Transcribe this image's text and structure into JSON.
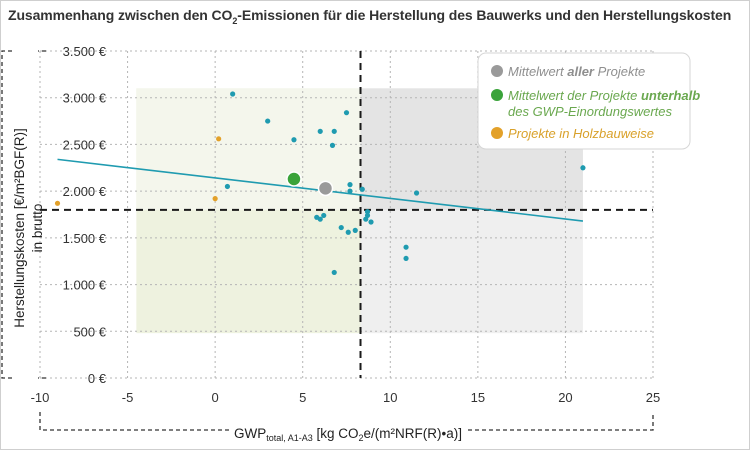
{
  "title_parts": {
    "pre": "Zusammenhang zwischen den CO",
    "sub": "2",
    "post": "-Emissionen für die Herstellung des Bauwerks und den Herstellungskosten"
  },
  "colors": {
    "teal": "#1f9bb0",
    "green": "#3aa33a",
    "gray": "#9a9a9a",
    "orange": "#e3a12a",
    "green_region": "#eef2df",
    "gray_region": "#e4e4e4"
  },
  "legend": [
    {
      "prefix": "Mittelwert ",
      "em": "aller",
      "suffix": " Projekte",
      "color": "#8f8f8f",
      "marker": "#9a9a9a"
    },
    {
      "prefix": "Mittelwert der Projekte ",
      "em": "unterhalb",
      "suffix": "",
      "line2": "des GWP-Einordungswertes",
      "color": "#6aa84f",
      "marker": "#3aa33a"
    },
    {
      "prefix": "Projekte in Holzbauweise",
      "em": "",
      "suffix": "",
      "color": "#d9a12a",
      "marker": "#e3a12a"
    }
  ],
  "chart_data": {
    "type": "scatter",
    "title": "Zusammenhang zwischen den CO2-Emissionen für die Herstellung des Bauwerks und den Herstellungskosten",
    "xlabel": "GWPtotal, A1-A3 [kg CO2e/(m²NRF(R)•a)]",
    "xlabel_parts": {
      "main": "GWP",
      "sub": "total, A1-A3",
      "rest": " [kg CO",
      "sub2": "2",
      "rest2": "e/(m²NRF(R)•a)]"
    },
    "ylabel": "Herstellungskosten [€/m²BGF(R)]",
    "ylabel2": "in brutto",
    "xlim": [
      -10,
      25
    ],
    "ylim": [
      0,
      3500
    ],
    "x_ticks": [
      -10,
      -5,
      0,
      5,
      10,
      15,
      20,
      25
    ],
    "x_tick_labels": [
      "-10",
      "-5",
      "0",
      "5",
      "10",
      "15",
      "20",
      "25"
    ],
    "y_ticks": [
      0,
      500,
      1000,
      1500,
      2000,
      2500,
      3000,
      3500
    ],
    "y_tick_labels": [
      "0 €",
      "500 €",
      "1.000 €",
      "1.500 €",
      "2.000 €",
      "2.500 €",
      "3.000 €",
      "3.500 €"
    ],
    "grid": true,
    "legend_position": "top-right",
    "reference_lines": {
      "x": 8.3,
      "y": 1800
    },
    "regions": {
      "green": {
        "x": [
          -4.5,
          8.3
        ],
        "y": [
          480,
          3100
        ]
      },
      "gray": {
        "x": [
          8.3,
          21
        ],
        "y": [
          480,
          3100
        ]
      }
    },
    "trendline": {
      "x": [
        -9,
        21
      ],
      "y": [
        2340,
        1680
      ]
    },
    "series": [
      {
        "name": "Projekte",
        "points": [
          [
            1,
            3040
          ],
          [
            3,
            2750
          ],
          [
            4.5,
            2550
          ],
          [
            6,
            2640
          ],
          [
            6.8,
            2640
          ],
          [
            7.5,
            2840
          ],
          [
            6.7,
            2490
          ],
          [
            0.7,
            2050
          ],
          [
            6.4,
            2080
          ],
          [
            7.7,
            2070
          ],
          [
            7.7,
            2000
          ],
          [
            8.4,
            2020
          ],
          [
            11.5,
            1980
          ],
          [
            21,
            2250
          ],
          [
            6.2,
            1740
          ],
          [
            5.8,
            1720
          ],
          [
            6.0,
            1700
          ],
          [
            7.2,
            1610
          ],
          [
            7.6,
            1560
          ],
          [
            8.0,
            1580
          ],
          [
            8.7,
            1780
          ],
          [
            8.7,
            1740
          ],
          [
            8.6,
            1700
          ],
          [
            8.9,
            1670
          ],
          [
            10.9,
            1400
          ],
          [
            10.9,
            1280
          ],
          [
            6.8,
            1130
          ]
        ]
      },
      {
        "name": "Projekte in Holzbauweise",
        "points": [
          [
            -9,
            1870
          ],
          [
            0,
            1920
          ],
          [
            0.2,
            2560
          ]
        ]
      },
      {
        "name": "Mittelwert aller Projekte",
        "points": [
          [
            6.3,
            2030
          ]
        ]
      },
      {
        "name": "Mittelwert der Projekte unterhalb des GWP-Einordungswertes",
        "points": [
          [
            4.5,
            2130
          ]
        ]
      }
    ]
  }
}
